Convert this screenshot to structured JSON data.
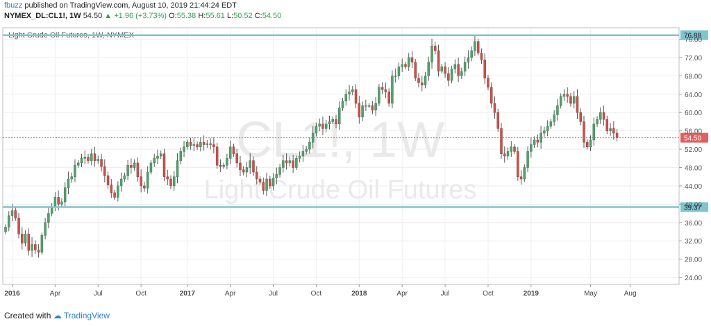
{
  "header": {
    "line1": {
      "user": "fbuzz",
      "text": "published on TradingView.com, August 10, 2019 21:44:24 EDT"
    },
    "line2": {
      "symbol": "NYMEX_DL:CL1!, 1W",
      "price": "54.50",
      "change": "+1.96 (+3.73%)",
      "o_label": "O:",
      "o": "55.38",
      "h_label": "H:",
      "h": "55.61",
      "l_label": "L:",
      "l": "50.52",
      "c_label": "C:",
      "c": "54.50"
    }
  },
  "footer": {
    "created_with": "Created with",
    "brand": "TradingView"
  },
  "colors": {
    "up": "#53a16b",
    "down": "#c8534b",
    "wick": "#555555",
    "level": "#7fc4cf",
    "price_line": "#e06060",
    "grid": "#eeeeee",
    "badge_level": "#7fc4cf",
    "badge_price": "#e06060"
  },
  "chart_data": {
    "type": "candlestick",
    "title": "Light Crude Oil Futures, 1W, NYMEX",
    "watermark_symbol": "CL1!, 1W",
    "watermark_name": "Light Crude Oil Futures",
    "y_ticks": [
      "24.00",
      "28.00",
      "32.00",
      "36.00",
      "40.00",
      "44.00",
      "48.00",
      "52.00",
      "56.00",
      "60.00",
      "64.00",
      "68.00",
      "72.00",
      "76.00"
    ],
    "ylim": [
      22.5,
      78.5
    ],
    "x_ticks": [
      {
        "label": "2016",
        "index": 2,
        "bold": true
      },
      {
        "label": "Apr",
        "index": 15
      },
      {
        "label": "Jul",
        "index": 28
      },
      {
        "label": "Oct",
        "index": 41
      },
      {
        "label": "2017",
        "index": 55,
        "bold": true
      },
      {
        "label": "Apr",
        "index": 68
      },
      {
        "label": "Jul",
        "index": 81
      },
      {
        "label": "Oct",
        "index": 94
      },
      {
        "label": "2018",
        "index": 107,
        "bold": true
      },
      {
        "label": "Apr",
        "index": 120
      },
      {
        "label": "Jul",
        "index": 133
      },
      {
        "label": "Oct",
        "index": 146
      },
      {
        "label": "2019",
        "index": 159,
        "bold": true
      },
      {
        "label": "May",
        "index": 177
      },
      {
        "label": "Aug",
        "index": 189
      }
    ],
    "levels": [
      {
        "label": "76.88",
        "value": 76.88
      },
      {
        "label": "39.37",
        "value": 39.37
      }
    ],
    "last_price": {
      "label": "54.50",
      "value": 54.5
    },
    "closes": [
      35.0,
      37.5,
      38.6,
      37.0,
      33.5,
      31.5,
      33.5,
      29.9,
      31.2,
      30.0,
      29.5,
      33.2,
      36.0,
      38.0,
      39.5,
      41.5,
      40.0,
      40.5,
      43.6,
      45.5,
      46.0,
      48.5,
      49.0,
      50.0,
      50.3,
      49.5,
      51.0,
      49.5,
      49.8,
      48.2,
      46.2,
      44.2,
      42.5,
      41.5,
      44.0,
      45.5,
      46.2,
      48.5,
      48.0,
      49.0,
      46.0,
      44.0,
      43.5,
      47.0,
      49.0,
      50.0,
      50.5,
      51.0,
      46.0,
      45.5,
      44.0,
      46.0,
      49.5,
      51.5,
      52.5,
      53.5,
      52.8,
      53.0,
      52.5,
      53.5,
      53.0,
      53.2,
      53.0,
      52.5,
      48.5,
      48.2,
      48.5,
      50.0,
      52.5,
      51.0,
      49.0,
      47.5,
      47.0,
      48.0,
      49.5,
      47.0,
      45.5,
      44.8,
      43.0,
      45.5,
      44.0,
      45.7,
      46.5,
      48.0,
      49.5,
      49.0,
      49.5,
      48.0,
      50.0,
      50.5,
      51.5,
      52.0,
      53.5,
      55.5,
      57.0,
      57.5,
      56.5,
      57.5,
      58.0,
      58.5,
      57.5,
      61.0,
      62.5,
      64.0,
      64.5,
      65.0,
      62.0,
      59.0,
      61.5,
      61.5,
      61.5,
      60.5,
      62.0,
      65.5,
      65.0,
      64.5,
      62.0,
      68.0,
      68.0,
      70.0,
      70.5,
      70.0,
      72.0,
      71.0,
      67.5,
      66.5,
      66.0,
      68.0,
      71.0,
      74.5,
      73.5,
      69.0,
      70.0,
      68.5,
      67.0,
      69.5,
      70.5,
      68.0,
      69.0,
      71.0,
      72.0,
      73.5,
      75.5,
      73.0,
      71.5,
      67.5,
      65.5,
      62.0,
      60.0,
      56.5,
      51.0,
      50.5,
      51.5,
      52.5,
      51.5,
      46.0,
      45.5,
      48.0,
      51.5,
      53.0,
      54.0,
      53.5,
      55.5,
      56.0,
      57.0,
      58.0,
      59.5,
      61.5,
      63.5,
      64.0,
      63.5,
      62.0,
      63.5,
      60.0,
      58.0,
      53.5,
      52.5,
      54.0,
      57.5,
      58.5,
      60.0,
      58.5,
      56.0,
      56.5,
      55.5,
      54.5
    ]
  }
}
